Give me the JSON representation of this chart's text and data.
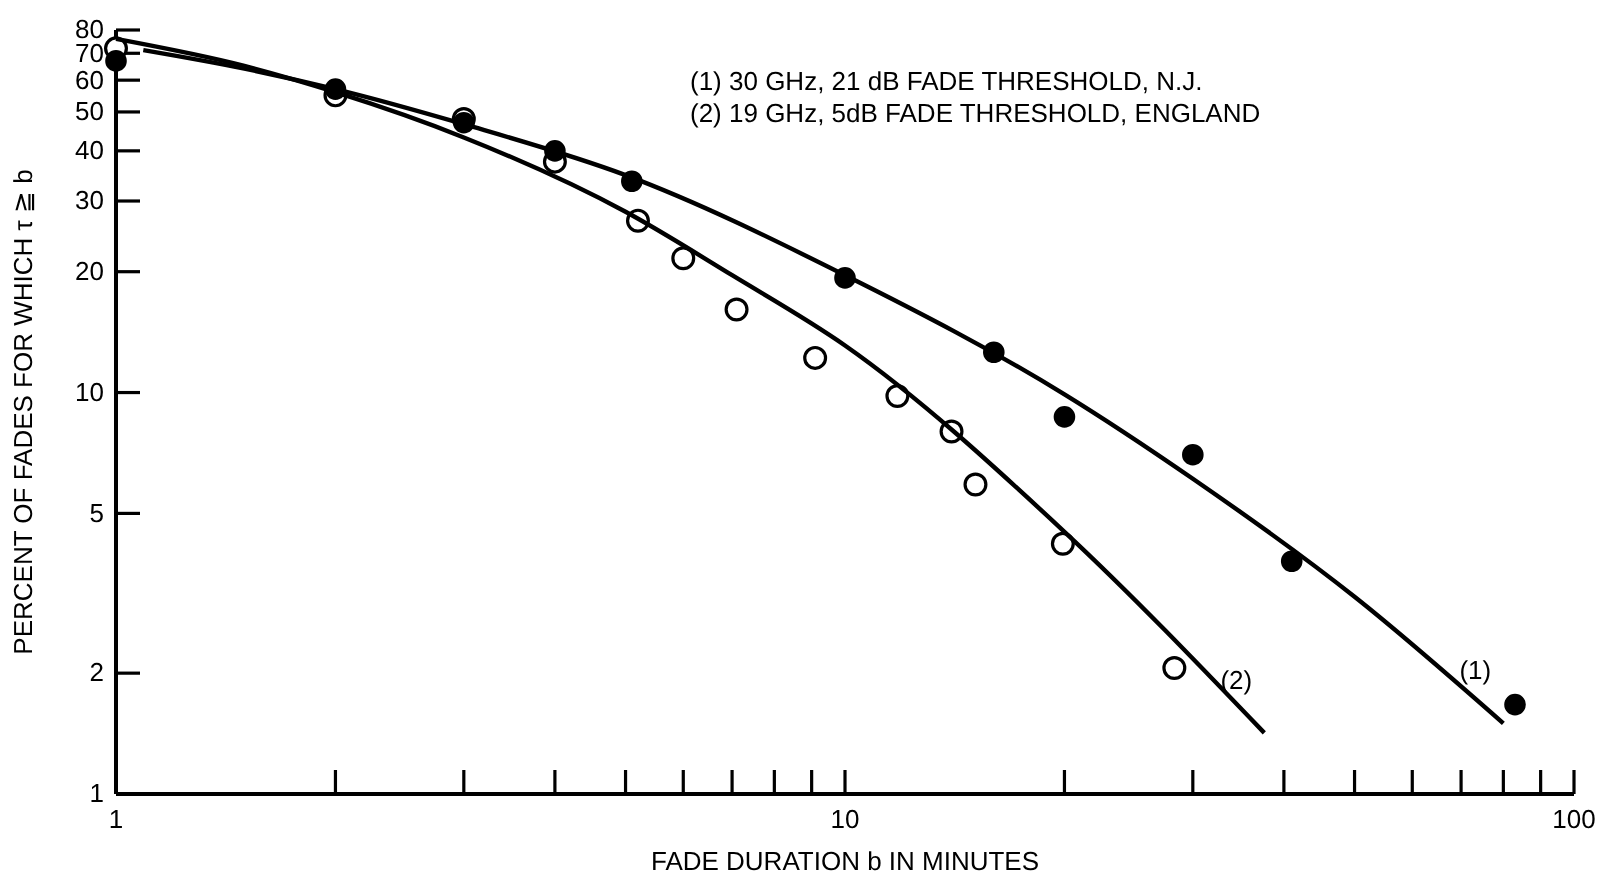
{
  "chart_data": {
    "type": "scatter",
    "xlabel": "FADE DURATION b IN MINUTES",
    "ylabel": "PERCENT OF FADES FOR WHICH τ ≧ b",
    "log": "xy",
    "xlim": [
      1,
      100
    ],
    "xticks": [
      1,
      {
        "value": 2,
        "label": null
      },
      {
        "value": 3,
        "label": null
      },
      {
        "value": 4,
        "label": null
      },
      {
        "value": 5,
        "label": null
      },
      {
        "value": 6,
        "label": null
      },
      {
        "value": 7,
        "label": null
      },
      {
        "value": 8,
        "label": null
      },
      {
        "value": 9,
        "label": null
      },
      10,
      {
        "value": 20,
        "label": null
      },
      {
        "value": 30,
        "label": null
      },
      {
        "value": 40,
        "label": null
      },
      {
        "value": 50,
        "label": null
      },
      {
        "value": 60,
        "label": null
      },
      {
        "value": 70,
        "label": null
      },
      {
        "value": 80,
        "label": null
      },
      {
        "value": 90,
        "label": null
      },
      100
    ],
    "ylim": [
      1,
      80
    ],
    "yticks": [
      1,
      2,
      5,
      10,
      20,
      30,
      40,
      50,
      60,
      70,
      80
    ],
    "grid": false,
    "marker": "circle",
    "series": [
      {
        "color": "#ffffff",
        "x": [
          1,
          2,
          3,
          4,
          5.2,
          6,
          7.1,
          9.1,
          11.8,
          14,
          15.1,
          19.9,
          28.3
        ],
        "values": [
          72,
          55,
          48,
          37.6,
          26.8,
          21.6,
          16.1,
          12.2,
          9.8,
          8,
          5.9,
          4.2,
          2.06
        ]
      },
      {
        "color": "#000000",
        "x": [
          1,
          2,
          3,
          4,
          5.1,
          10,
          16,
          20,
          30,
          41,
          83
        ],
        "values": [
          67,
          57,
          47,
          40,
          33.6,
          19.3,
          12.6,
          8.7,
          7,
          3.8,
          1.67
        ]
      },
      {
        "type": "line",
        "color": "#000000",
        "marker": "none",
        "x": [
          1.09,
          1.5,
          2,
          3,
          5,
          10,
          20,
          30,
          50,
          80
        ],
        "values": [
          71.3,
          64.1,
          57,
          46.6,
          34.8,
          19.6,
          9.9,
          6.1,
          3.1,
          1.5
        ]
      },
      {
        "type": "line",
        "color": "#000000",
        "marker": "none",
        "x": [
          1,
          1.5,
          2,
          3,
          5,
          7,
          10,
          20,
          37.6
        ],
        "values": [
          76,
          65.1,
          56,
          43.2,
          28.2,
          19.6,
          13.1,
          4.5,
          1.42
        ]
      }
    ],
    "annotations": [
      "(1)  30 GHz, 21 dB FADE THRESHOLD, N.J.",
      "(2)  19 GHz, 5dB FADE THRESHOLD, ENGLAND",
      "(1)",
      "(2)"
    ]
  }
}
